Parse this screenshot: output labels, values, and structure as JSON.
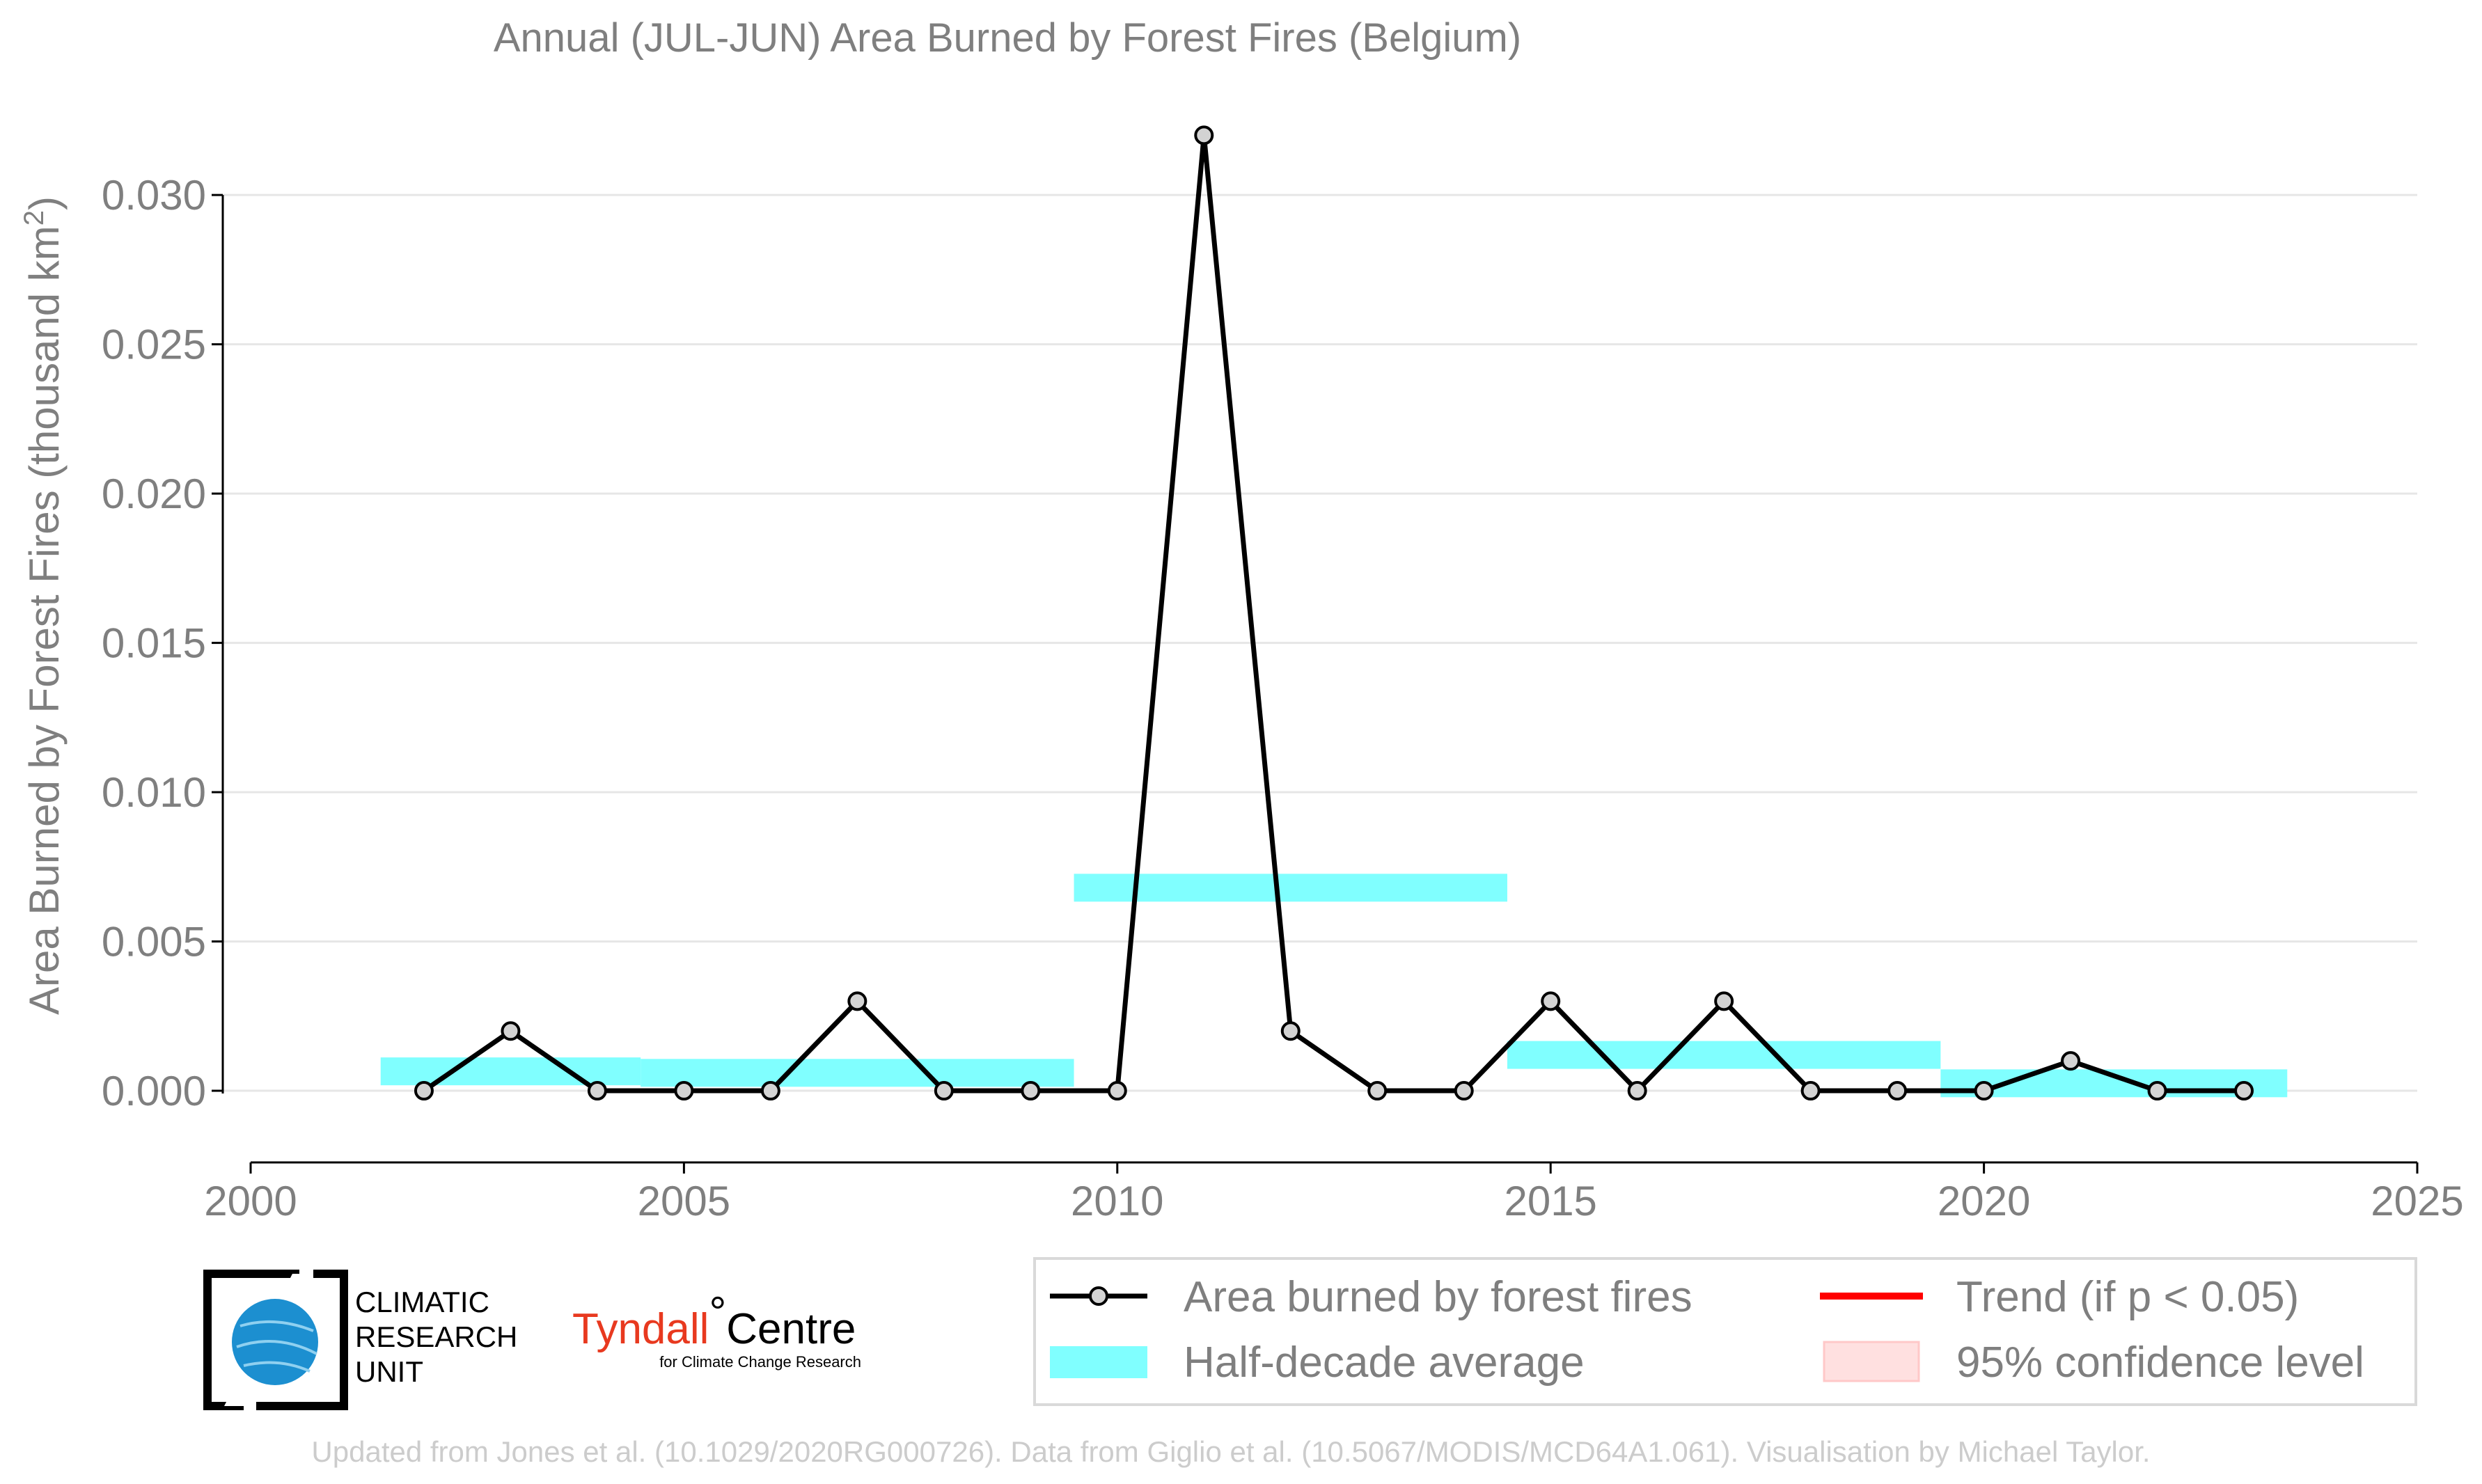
{
  "chart_data": {
    "type": "line",
    "title": "Annual (JUL-JUN) Area Burned by Forest Fires (Belgium)",
    "ylabel_main": "Area Burned by Forest Fires (thousand km",
    "ylabel_sup": "2",
    "ylabel_close": ")",
    "xlim": [
      2000,
      2025
    ],
    "ylim": [
      -0.0024,
      0.0335
    ],
    "xticks": [
      2000,
      2005,
      2010,
      2015,
      2020,
      2025
    ],
    "yticks": [
      0.0,
      0.005,
      0.01,
      0.015,
      0.02,
      0.025,
      0.03
    ],
    "ytick_labels": [
      "0.000",
      "0.005",
      "0.010",
      "0.015",
      "0.020",
      "0.025",
      "0.030"
    ],
    "grid": "horizontal",
    "series": [
      {
        "name": "Area burned by forest fires",
        "color": "#000000",
        "marker_fill": "#d3d3d3",
        "x": [
          2002,
          2003,
          2004,
          2005,
          2006,
          2007,
          2008,
          2009,
          2010,
          2011,
          2012,
          2013,
          2014,
          2015,
          2016,
          2017,
          2018,
          2019,
          2020,
          2021,
          2022,
          2023
        ],
        "y": [
          0.0,
          0.002,
          0.0,
          0.0,
          0.0,
          0.003,
          0.0,
          0.0,
          0.0,
          0.032,
          0.002,
          0.0,
          0.0,
          0.003,
          0.0,
          0.003,
          0.0,
          0.0,
          0.0,
          0.001,
          0.0,
          0.0
        ]
      }
    ],
    "half_decade_average": {
      "name": "Half-decade average",
      "color": "#80ffff",
      "segments": [
        {
          "x0": 2001.5,
          "x1": 2004.5,
          "y": 0.00065
        },
        {
          "x0": 2004.5,
          "x1": 2009.5,
          "y": 0.0006
        },
        {
          "x0": 2009.5,
          "x1": 2014.5,
          "y": 0.0068
        },
        {
          "x0": 2014.5,
          "x1": 2019.5,
          "y": 0.0012
        },
        {
          "x0": 2019.5,
          "x1": 2023.5,
          "y": 0.00025
        }
      ]
    },
    "legend": {
      "placement": "bottom-right",
      "items": [
        {
          "label": "Area burned by forest fires",
          "kind": "line-marker",
          "color": "#000000"
        },
        {
          "label": "Trend (if p < 0.05)",
          "kind": "line",
          "color": "#ff0000"
        },
        {
          "label": "Half-decade average",
          "kind": "band",
          "color": "#80ffff"
        },
        {
          "label": "95% confidence level",
          "kind": "patch",
          "color": "#ffe0e0"
        }
      ]
    }
  },
  "logos": {
    "cru_lines": [
      "CLIMATIC",
      "RESEARCH",
      "UNIT"
    ],
    "tyndall_red": "Tyndall",
    "tyndall_degree": "°",
    "tyndall_black": "Centre",
    "tyndall_sub": "for Climate Change Research"
  },
  "footnote": "Updated from Jones et al. (10.1029/2020RG000726). Data from Giglio et al. (10.5067/MODIS/MCD64A1.061). Visualisation by Michael Taylor."
}
